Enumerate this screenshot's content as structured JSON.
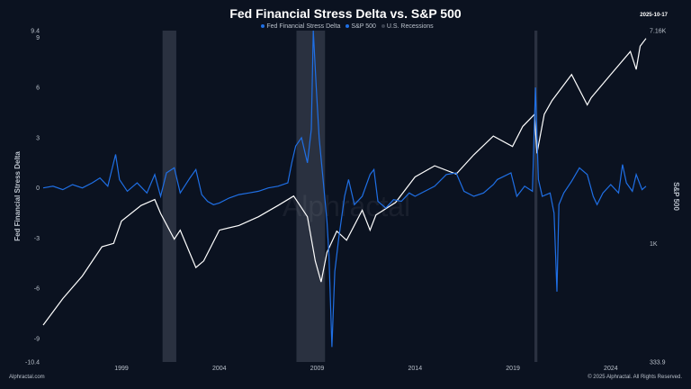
{
  "header": {
    "title": "Fed Financial Stress Delta vs. S&P 500",
    "date": "2025-10-17"
  },
  "footer": {
    "left": "Alphractal.com",
    "right": "© 2025 Alphractal. All Rights Reserved."
  },
  "watermark": "Alphractal",
  "colors": {
    "background": "#0b1220",
    "stress": "#1f6fe5",
    "sp500": "#ffffff",
    "recession": "#2a3140"
  },
  "chart_data": {
    "type": "line",
    "title": "Fed Financial Stress Delta vs. S&P 500",
    "legend": [
      "Fed Financial Stress Delta",
      "S&P 500",
      "U.S. Recessions"
    ],
    "legend_placement": "top",
    "grid": false,
    "xlim": [
      1995.0,
      2025.8
    ],
    "x_ticks": [
      "1999",
      "2004",
      "2009",
      "2014",
      "2019",
      "2024"
    ],
    "y_left": {
      "label": "Fed Financial Stress Delta",
      "range": [
        -10.4,
        9.4
      ],
      "ticks": [
        "9.4",
        "9",
        "6",
        "3",
        "0",
        "-3",
        "-6",
        "-9",
        "-10.4"
      ]
    },
    "y_right": {
      "label": "S&P 500",
      "scale": "log",
      "range": [
        333.9,
        7160
      ],
      "ticks": [
        "7.16K",
        "1K",
        "333.9"
      ]
    },
    "recessions": [
      [
        2001.1,
        2001.8
      ],
      [
        2007.94,
        2009.4
      ],
      [
        2020.1,
        2020.25
      ]
    ],
    "series": [
      {
        "name": "Fed Financial Stress Delta",
        "axis": "left",
        "points": [
          [
            1995.0,
            0
          ],
          [
            1995.5,
            0.1
          ],
          [
            1996,
            -0.1
          ],
          [
            1996.5,
            0.2
          ],
          [
            1997,
            0
          ],
          [
            1997.5,
            0.3
          ],
          [
            1997.9,
            0.6
          ],
          [
            1998.3,
            0.1
          ],
          [
            1998.7,
            2.0
          ],
          [
            1998.9,
            0.5
          ],
          [
            1999.3,
            -0.2
          ],
          [
            1999.8,
            0.3
          ],
          [
            2000.3,
            -0.3
          ],
          [
            2000.7,
            0.8
          ],
          [
            2001.0,
            -0.5
          ],
          [
            2001.3,
            0.9
          ],
          [
            2001.7,
            1.2
          ],
          [
            2002.0,
            -0.3
          ],
          [
            2002.5,
            0.6
          ],
          [
            2002.8,
            1.1
          ],
          [
            2003.1,
            -0.4
          ],
          [
            2003.4,
            -0.8
          ],
          [
            2003.7,
            -1.0
          ],
          [
            2004.0,
            -0.9
          ],
          [
            2004.5,
            -0.6
          ],
          [
            2005,
            -0.4
          ],
          [
            2005.5,
            -0.3
          ],
          [
            2006,
            -0.2
          ],
          [
            2006.5,
            0
          ],
          [
            2007.0,
            0.1
          ],
          [
            2007.5,
            0.3
          ],
          [
            2007.7,
            1.5
          ],
          [
            2007.9,
            2.5
          ],
          [
            2008.2,
            3.0
          ],
          [
            2008.5,
            1.5
          ],
          [
            2008.7,
            3.5
          ],
          [
            2008.8,
            9.4
          ],
          [
            2008.95,
            6
          ],
          [
            2009.1,
            3
          ],
          [
            2009.3,
            0.5
          ],
          [
            2009.5,
            -2
          ],
          [
            2009.6,
            -4
          ],
          [
            2009.75,
            -9.5
          ],
          [
            2009.9,
            -5
          ],
          [
            2010.1,
            -3
          ],
          [
            2010.4,
            -0.5
          ],
          [
            2010.6,
            0.5
          ],
          [
            2010.9,
            -1
          ],
          [
            2011.3,
            -0.5
          ],
          [
            2011.7,
            0.8
          ],
          [
            2011.9,
            1.1
          ],
          [
            2012.1,
            -0.8
          ],
          [
            2012.5,
            -1.2
          ],
          [
            2012.9,
            -0.7
          ],
          [
            2013.3,
            -0.8
          ],
          [
            2013.7,
            -0.3
          ],
          [
            2014,
            -0.5
          ],
          [
            2014.5,
            -0.2
          ],
          [
            2015,
            0.1
          ],
          [
            2015.6,
            0.8
          ],
          [
            2016.1,
            0.9
          ],
          [
            2016.5,
            -0.2
          ],
          [
            2017,
            -0.5
          ],
          [
            2017.5,
            -0.3
          ],
          [
            2018,
            0.2
          ],
          [
            2018.2,
            0.5
          ],
          [
            2018.9,
            0.9
          ],
          [
            2019.2,
            -0.5
          ],
          [
            2019.6,
            0.1
          ],
          [
            2020.0,
            -0.2
          ],
          [
            2020.15,
            6.0
          ],
          [
            2020.3,
            0.5
          ],
          [
            2020.5,
            -0.5
          ],
          [
            2020.9,
            -0.3
          ],
          [
            2021.1,
            -1.5
          ],
          [
            2021.25,
            -6.2
          ],
          [
            2021.35,
            -1
          ],
          [
            2021.6,
            -0.3
          ],
          [
            2022.0,
            0.4
          ],
          [
            2022.4,
            1.2
          ],
          [
            2022.8,
            0.8
          ],
          [
            2023.1,
            -0.5
          ],
          [
            2023.3,
            -1.0
          ],
          [
            2023.6,
            -0.3
          ],
          [
            2024.0,
            0.2
          ],
          [
            2024.4,
            -0.3
          ],
          [
            2024.6,
            1.4
          ],
          [
            2024.8,
            0.3
          ],
          [
            2025.1,
            -0.2
          ],
          [
            2025.3,
            0.8
          ],
          [
            2025.6,
            -0.1
          ],
          [
            2025.8,
            0.1
          ]
        ]
      },
      {
        "name": "S&P 500",
        "axis": "right",
        "points": [
          [
            1995.0,
            470
          ],
          [
            1996,
            600
          ],
          [
            1997,
            740
          ],
          [
            1998,
            970
          ],
          [
            1998.6,
            1000
          ],
          [
            1999,
            1230
          ],
          [
            2000,
            1420
          ],
          [
            2000.7,
            1500
          ],
          [
            2001,
            1320
          ],
          [
            2001.7,
            1040
          ],
          [
            2002,
            1130
          ],
          [
            2002.8,
            800
          ],
          [
            2003.2,
            850
          ],
          [
            2004,
            1130
          ],
          [
            2005,
            1180
          ],
          [
            2006,
            1280
          ],
          [
            2007,
            1420
          ],
          [
            2007.8,
            1550
          ],
          [
            2008.5,
            1280
          ],
          [
            2008.9,
            850
          ],
          [
            2009.2,
            700
          ],
          [
            2009.5,
            920
          ],
          [
            2010,
            1120
          ],
          [
            2010.5,
            1030
          ],
          [
            2011.3,
            1360
          ],
          [
            2011.7,
            1130
          ],
          [
            2012,
            1300
          ],
          [
            2013,
            1460
          ],
          [
            2014,
            1850
          ],
          [
            2015,
            2050
          ],
          [
            2016.1,
            1900
          ],
          [
            2017,
            2270
          ],
          [
            2018,
            2700
          ],
          [
            2018.98,
            2450
          ],
          [
            2019.5,
            2950
          ],
          [
            2020.1,
            3300
          ],
          [
            2020.23,
            2300
          ],
          [
            2020.6,
            3300
          ],
          [
            2021,
            3750
          ],
          [
            2022,
            4770
          ],
          [
            2022.8,
            3600
          ],
          [
            2023,
            3850
          ],
          [
            2024,
            4770
          ],
          [
            2025,
            5900
          ],
          [
            2025.3,
            5000
          ],
          [
            2025.5,
            6200
          ],
          [
            2025.8,
            6660
          ]
        ]
      }
    ]
  }
}
